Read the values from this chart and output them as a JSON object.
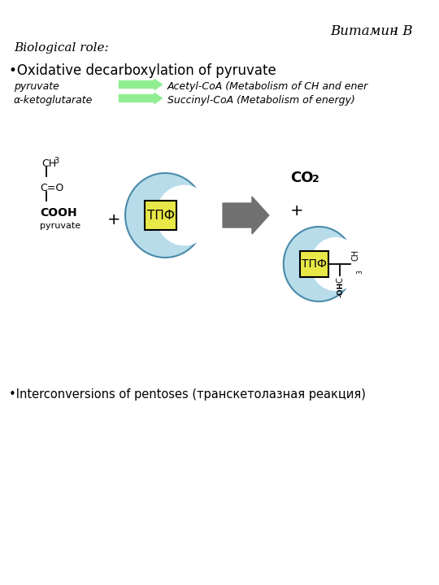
{
  "title": "Витамин B",
  "title_sub": "1",
  "bg_color": "#ffffff",
  "biological_role_label": "Biological role:",
  "bullet1_text": "•Oxidative decarboxylation of pyruvate",
  "row1_left": "pyruvate",
  "row2_left": "α-ketoglutarate",
  "row1_right": "Acetyl-CoA (Metabolism of CH and ener",
  "row2_right": "Succinyl-CoA (Metabolism of energy)",
  "arrow_color": "#90EE90",
  "moon_color": "#b8dcea",
  "moon_edge_color": "#4a8aaa",
  "box_color": "#e8e848",
  "box_edge_color": "#000000",
  "tpf_label": "ТПФ",
  "co2_label": "CO",
  "co2_sub": "2",
  "bullet2_text": "•Interconversions of pentoses (транскетолазная реакция)",
  "big_arrow_color": "#707070"
}
